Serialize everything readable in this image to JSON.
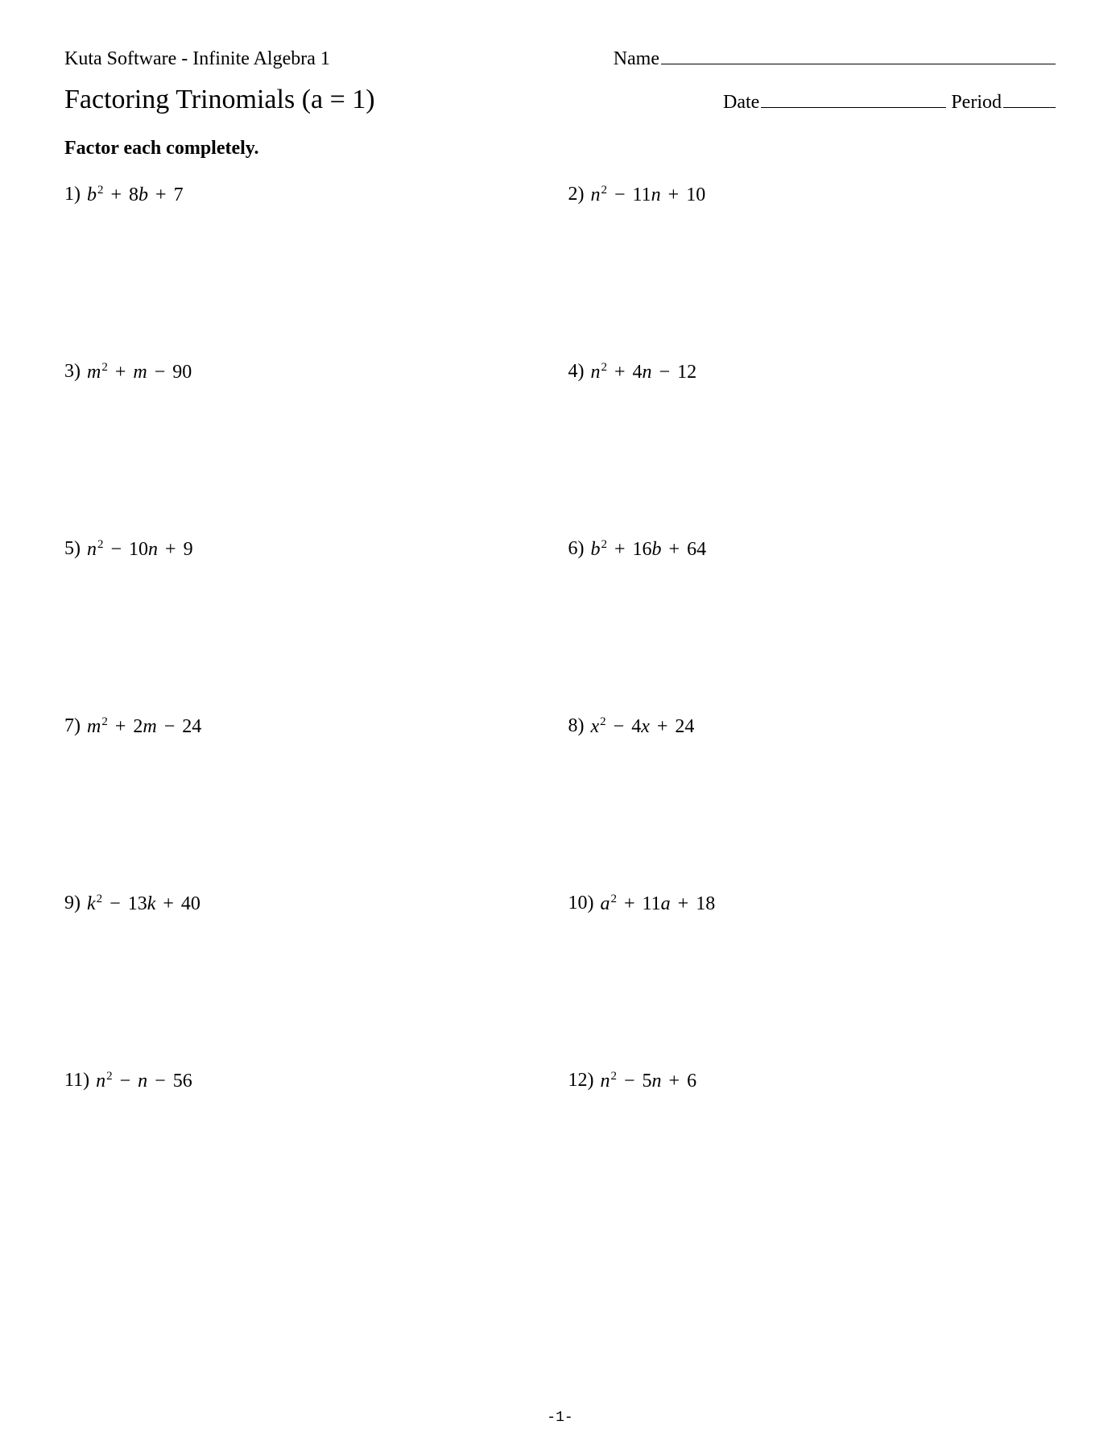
{
  "header": {
    "software": "Kuta Software - Infinite Algebra 1",
    "name_label": "Name",
    "title": "Factoring Trinomials (a = 1)",
    "date_label": "Date",
    "period_label": "Period"
  },
  "instructions": "Factor each completely.",
  "problems": [
    {
      "num": "1)",
      "var": "b",
      "b_sign": "+",
      "b_coef": "8",
      "b_var": "b",
      "c_sign": "+",
      "c": "7"
    },
    {
      "num": "2)",
      "var": "n",
      "b_sign": "−",
      "b_coef": "11",
      "b_var": "n",
      "c_sign": "+",
      "c": "10"
    },
    {
      "num": "3)",
      "var": "m",
      "b_sign": "+",
      "b_coef": "",
      "b_var": "m",
      "c_sign": "−",
      "c": "90"
    },
    {
      "num": "4)",
      "var": "n",
      "b_sign": "+",
      "b_coef": "4",
      "b_var": "n",
      "c_sign": "−",
      "c": "12"
    },
    {
      "num": "5)",
      "var": "n",
      "b_sign": "−",
      "b_coef": "10",
      "b_var": "n",
      "c_sign": "+",
      "c": "9"
    },
    {
      "num": "6)",
      "var": "b",
      "b_sign": "+",
      "b_coef": "16",
      "b_var": "b",
      "c_sign": "+",
      "c": "64"
    },
    {
      "num": "7)",
      "var": "m",
      "b_sign": "+",
      "b_coef": "2",
      "b_var": "m",
      "c_sign": "−",
      "c": "24"
    },
    {
      "num": "8)",
      "var": "x",
      "b_sign": "−",
      "b_coef": "4",
      "b_var": "x",
      "c_sign": "+",
      "c": "24"
    },
    {
      "num": "9)",
      "var": "k",
      "b_sign": "−",
      "b_coef": "13",
      "b_var": "k",
      "c_sign": "+",
      "c": "40"
    },
    {
      "num": "10)",
      "var": "a",
      "b_sign": "+",
      "b_coef": "11",
      "b_var": "a",
      "c_sign": "+",
      "c": "18"
    },
    {
      "num": "11)",
      "var": "n",
      "b_sign": "−",
      "b_coef": "",
      "b_var": "n",
      "c_sign": "−",
      "c": "56"
    },
    {
      "num": "12)",
      "var": "n",
      "b_sign": "−",
      "b_coef": "5",
      "b_var": "n",
      "c_sign": "+",
      "c": "6"
    }
  ],
  "footer": {
    "page": "-1-"
  },
  "style": {
    "background_color": "#ffffff",
    "text_color": "#000000",
    "body_fontsize": 24,
    "title_fontsize": 34,
    "font_family": "Times New Roman"
  }
}
